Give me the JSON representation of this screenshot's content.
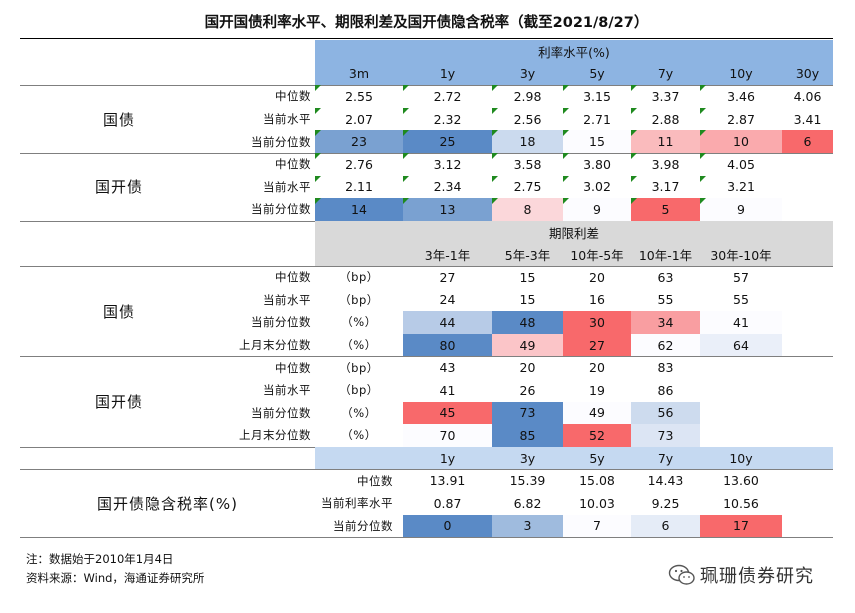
{
  "title": "国开国债利率水平、期限利差及国开债隐含税率（截至2021/8/27）",
  "colors": {
    "header_blue": "#8db4e2",
    "header_light_blue": "#c5d9f1",
    "header_gray": "#d9d9d9",
    "low_red": "#f8696b",
    "high_blue": "#5a8ac6",
    "mid_white": "#fcfcff"
  },
  "section_rates": {
    "header": "利率水平(%)",
    "tenors": [
      "3m",
      "1y",
      "3y",
      "5y",
      "7y",
      "10y",
      "30y"
    ],
    "groups": [
      {
        "name": "国债",
        "rows": [
          {
            "label": "中位数",
            "values": [
              "2.55",
              "2.72",
              "2.98",
              "3.15",
              "3.37",
              "3.46",
              "4.06"
            ]
          },
          {
            "label": "当前水平",
            "values": [
              "2.07",
              "2.32",
              "2.56",
              "2.71",
              "2.88",
              "2.87",
              "3.41"
            ]
          },
          {
            "label": "当前分位数",
            "values": [
              "23",
              "25",
              "18",
              "15",
              "11",
              "10",
              "6"
            ]
          }
        ]
      },
      {
        "name": "国开债",
        "rows": [
          {
            "label": "中位数",
            "values": [
              "2.76",
              "3.12",
              "3.58",
              "3.80",
              "3.98",
              "4.05",
              ""
            ]
          },
          {
            "label": "当前水平",
            "values": [
              "2.11",
              "2.34",
              "2.75",
              "3.02",
              "3.17",
              "3.21",
              ""
            ]
          },
          {
            "label": "当前分位数",
            "values": [
              "14",
              "13",
              "8",
              "9",
              "5",
              "9",
              ""
            ]
          }
        ]
      }
    ]
  },
  "section_spreads": {
    "header": "期限利差",
    "columns": [
      "3年-1年",
      "5年-3年",
      "10年-5年",
      "10年-1年",
      "30年-10年"
    ],
    "groups": [
      {
        "name": "国债",
        "rows": [
          {
            "label": "中位数",
            "unit": "（bp）",
            "values": [
              "27",
              "15",
              "20",
              "63",
              "57"
            ]
          },
          {
            "label": "当前水平",
            "unit": "（bp）",
            "values": [
              "24",
              "15",
              "16",
              "55",
              "55"
            ]
          },
          {
            "label": "当前分位数",
            "unit": "（%）",
            "values": [
              "44",
              "48",
              "30",
              "34",
              "41"
            ]
          },
          {
            "label": "上月末分位数",
            "unit": "（%）",
            "values": [
              "80",
              "49",
              "27",
              "62",
              "64"
            ]
          }
        ]
      },
      {
        "name": "国开债",
        "rows": [
          {
            "label": "中位数",
            "unit": "（bp）",
            "values": [
              "43",
              "20",
              "20",
              "83",
              ""
            ]
          },
          {
            "label": "当前水平",
            "unit": "（bp）",
            "values": [
              "41",
              "26",
              "19",
              "86",
              ""
            ]
          },
          {
            "label": "当前分位数",
            "unit": "（%）",
            "values": [
              "45",
              "73",
              "49",
              "56",
              ""
            ]
          },
          {
            "label": "上月末分位数",
            "unit": "（%）",
            "values": [
              "70",
              "85",
              "52",
              "73",
              ""
            ]
          }
        ]
      }
    ]
  },
  "section_tax": {
    "tenors": [
      "1y",
      "3y",
      "5y",
      "7y",
      "10y"
    ],
    "name": "国开债隐含税率(%)",
    "rows": [
      {
        "label": "中位数",
        "values": [
          "13.91",
          "15.39",
          "15.08",
          "14.43",
          "13.60"
        ]
      },
      {
        "label": "当前利率水平",
        "values": [
          "0.87",
          "6.82",
          "10.03",
          "9.25",
          "10.56"
        ]
      },
      {
        "label": "当前分位数",
        "values": [
          "0",
          "3",
          "7",
          "6",
          "17"
        ]
      }
    ]
  },
  "footer": {
    "note": "注：数据始于2010年1月4日",
    "source": "资料来源：Wind，海通证券研究所"
  },
  "brand": {
    "icon": "wechat-icon",
    "text": "珮珊债券研究"
  }
}
